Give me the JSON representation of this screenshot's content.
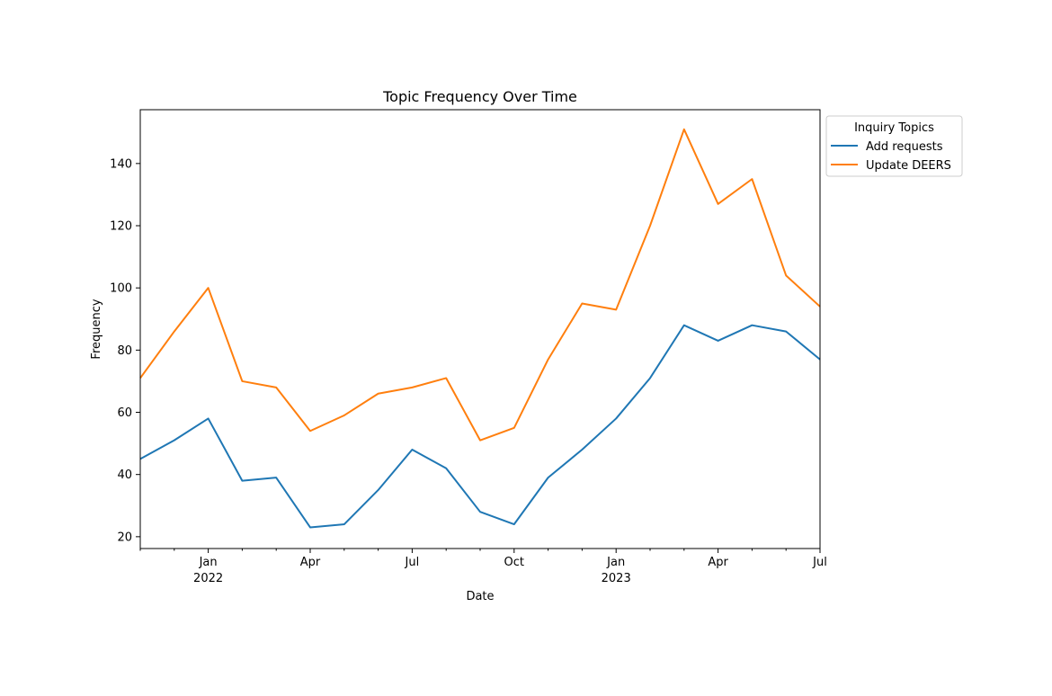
{
  "chart_data": {
    "type": "line",
    "title": "Topic Frequency Over Time",
    "xlabel": "Date",
    "ylabel": "Frequency",
    "x": [
      "2021-11",
      "2021-12",
      "2022-01",
      "2022-02",
      "2022-03",
      "2022-04",
      "2022-05",
      "2022-06",
      "2022-07",
      "2022-08",
      "2022-09",
      "2022-10",
      "2022-11",
      "2022-12",
      "2023-01",
      "2023-02",
      "2023-03",
      "2023-04",
      "2023-05",
      "2023-06",
      "2023-07"
    ],
    "xlim": [
      "2021-11",
      "2023-07"
    ],
    "ylim": [
      16.2,
      157.3
    ],
    "yticks": [
      20,
      40,
      60,
      80,
      100,
      120,
      140
    ],
    "xticks": [
      {
        "month": "2022-01",
        "label": "Jan",
        "sublabel": "2022"
      },
      {
        "month": "2022-04",
        "label": "Apr",
        "sublabel": ""
      },
      {
        "month": "2022-07",
        "label": "Jul",
        "sublabel": ""
      },
      {
        "month": "2022-10",
        "label": "Oct",
        "sublabel": ""
      },
      {
        "month": "2023-01",
        "label": "Jan",
        "sublabel": "2023"
      },
      {
        "month": "2023-04",
        "label": "Apr",
        "sublabel": ""
      },
      {
        "month": "2023-07",
        "label": "Jul",
        "sublabel": ""
      }
    ],
    "grid": false,
    "legend": {
      "title": "Inquiry Topics",
      "placement": "outside-upper-right"
    },
    "series": [
      {
        "name": "Add requests",
        "color": "#1f77b4",
        "values": [
          45,
          51,
          58,
          38,
          39,
          23,
          24,
          35,
          48,
          42,
          28,
          24,
          39,
          48,
          58,
          71,
          88,
          83,
          88,
          86,
          77
        ]
      },
      {
        "name": "Update DEERS",
        "color": "#ff7f0e",
        "values": [
          71,
          86,
          100,
          70,
          68,
          54,
          59,
          66,
          68,
          71,
          51,
          55,
          77,
          95,
          93,
          120,
          151,
          127,
          135,
          104,
          94
        ]
      }
    ]
  }
}
